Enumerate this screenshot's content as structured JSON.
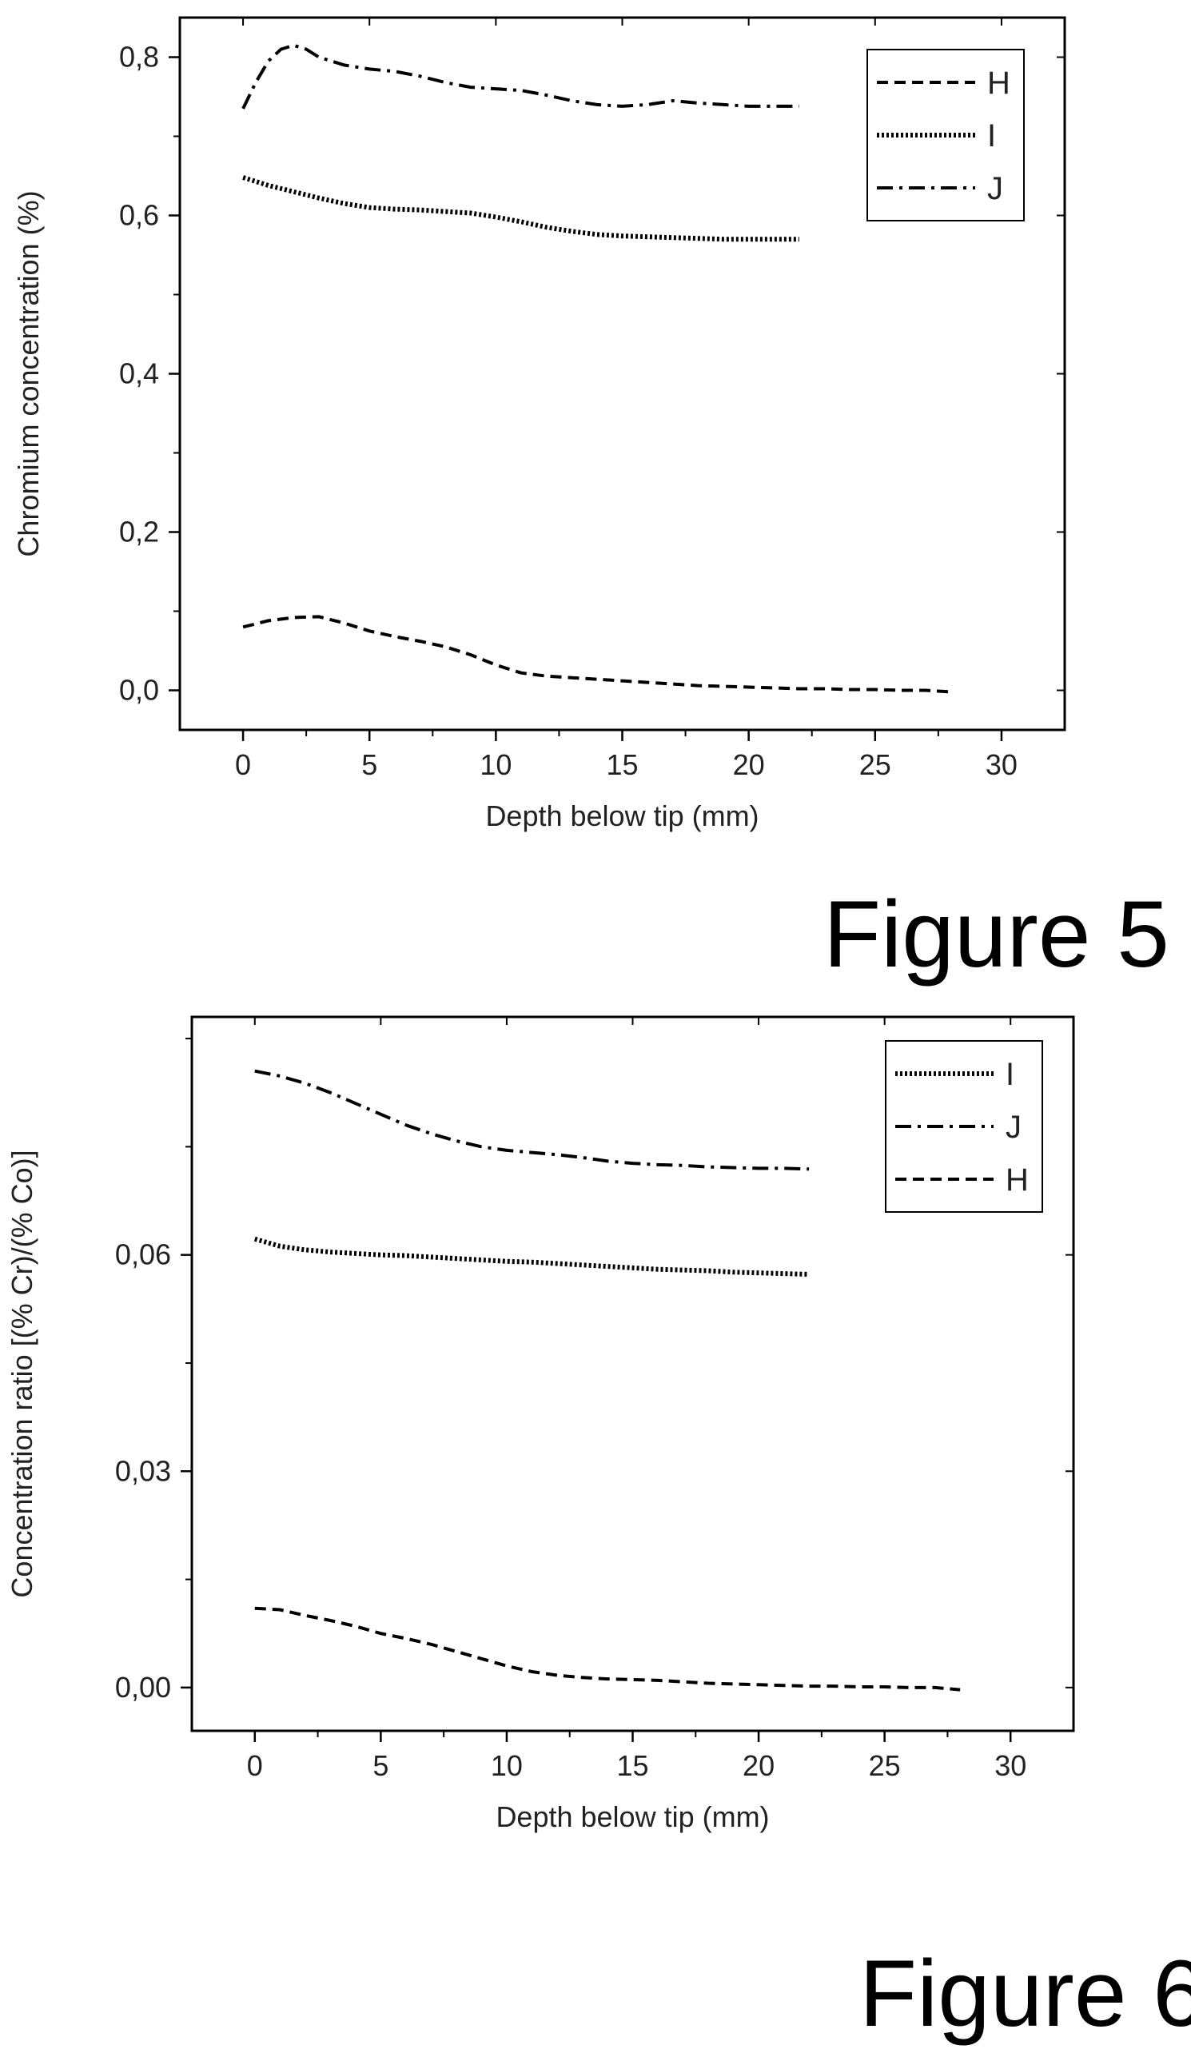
{
  "figures": [
    {
      "caption": "Figure 5"
    },
    {
      "caption": "Figure 6"
    }
  ],
  "chart_data": [
    {
      "type": "line",
      "title": "",
      "xlabel": "Depth below tip (mm)",
      "ylabel": "Chromium concentration (%)",
      "xlim": [
        -2.5,
        32.5
      ],
      "ylim": [
        -0.05,
        0.85
      ],
      "xticks": [
        0,
        5,
        10,
        15,
        20,
        25,
        30
      ],
      "xtick_labels": [
        "0",
        "5",
        "10",
        "15",
        "20",
        "25",
        "30"
      ],
      "yticks": [
        0.0,
        0.2,
        0.4,
        0.6,
        0.8
      ],
      "ytick_labels": [
        "0,0",
        "0,2",
        "0,4",
        "0,6",
        "0,8"
      ],
      "grid": false,
      "legend_position": "top-right",
      "series": [
        {
          "name": "H",
          "style": "dashed",
          "color": "#000000",
          "x": [
            0,
            1,
            2,
            3,
            4,
            5,
            6,
            7,
            8,
            9,
            10,
            11,
            12,
            13,
            14,
            15,
            16,
            17,
            18,
            19,
            20,
            21,
            22,
            23,
            24,
            25,
            26,
            27,
            28
          ],
          "y": [
            0.08,
            0.088,
            0.092,
            0.093,
            0.085,
            0.075,
            0.068,
            0.062,
            0.055,
            0.045,
            0.032,
            0.022,
            0.018,
            0.016,
            0.014,
            0.012,
            0.01,
            0.008,
            0.006,
            0.005,
            0.004,
            0.003,
            0.002,
            0.002,
            0.001,
            0.001,
            0.0,
            0.0,
            -0.002
          ]
        },
        {
          "name": "I",
          "style": "dotted",
          "color": "#000000",
          "x": [
            0,
            1,
            2,
            3,
            4,
            5,
            6,
            7,
            8,
            9,
            10,
            11,
            12,
            13,
            14,
            15,
            16,
            17,
            18,
            19,
            20,
            21,
            22
          ],
          "y": [
            0.648,
            0.638,
            0.63,
            0.622,
            0.615,
            0.61,
            0.608,
            0.607,
            0.605,
            0.603,
            0.598,
            0.592,
            0.585,
            0.58,
            0.576,
            0.574,
            0.573,
            0.572,
            0.571,
            0.57,
            0.57,
            0.57,
            0.57
          ]
        },
        {
          "name": "J",
          "style": "dashdot",
          "color": "#000000",
          "x": [
            0,
            0.5,
            1,
            1.5,
            2,
            2.5,
            3,
            4,
            5,
            6,
            7,
            8,
            9,
            10,
            11,
            12,
            13,
            14,
            15,
            16,
            17,
            18,
            19,
            20,
            21,
            22
          ],
          "y": [
            0.735,
            0.768,
            0.795,
            0.81,
            0.815,
            0.81,
            0.8,
            0.79,
            0.785,
            0.782,
            0.776,
            0.768,
            0.762,
            0.76,
            0.758,
            0.752,
            0.745,
            0.74,
            0.738,
            0.74,
            0.745,
            0.742,
            0.74,
            0.738,
            0.738,
            0.738
          ]
        }
      ]
    },
    {
      "type": "line",
      "title": "",
      "xlabel": "Depth below tip (mm)",
      "ylabel": "Concentration ratio [(% Cr)/(% Co)]",
      "xlim": [
        -2.5,
        32.5
      ],
      "ylim": [
        -0.006,
        0.093
      ],
      "xticks": [
        0,
        5,
        10,
        15,
        20,
        25,
        30
      ],
      "xtick_labels": [
        "0",
        "5",
        "10",
        "15",
        "20",
        "25",
        "30"
      ],
      "yticks": [
        0.0,
        0.03,
        0.06
      ],
      "ytick_labels": [
        "0,00",
        "0,03",
        "0,06"
      ],
      "grid": false,
      "legend_position": "top-right",
      "series": [
        {
          "name": "I",
          "style": "dotted",
          "color": "#000000",
          "x": [
            0,
            1,
            2,
            3,
            4,
            5,
            6,
            7,
            8,
            9,
            10,
            11,
            12,
            13,
            14,
            15,
            16,
            17,
            18,
            19,
            20,
            21,
            22
          ],
          "y": [
            0.0622,
            0.0612,
            0.0607,
            0.0604,
            0.0602,
            0.06,
            0.0599,
            0.0597,
            0.0595,
            0.0593,
            0.0591,
            0.059,
            0.0588,
            0.0586,
            0.0584,
            0.0582,
            0.058,
            0.0579,
            0.0578,
            0.0576,
            0.0575,
            0.0574,
            0.0573
          ]
        },
        {
          "name": "J",
          "style": "dashdot",
          "color": "#000000",
          "x": [
            0,
            1,
            2,
            3,
            4,
            5,
            6,
            7,
            8,
            9,
            10,
            11,
            12,
            13,
            14,
            15,
            16,
            17,
            18,
            19,
            20,
            21,
            22
          ],
          "y": [
            0.0855,
            0.0848,
            0.0838,
            0.0825,
            0.081,
            0.0795,
            0.078,
            0.0768,
            0.0758,
            0.075,
            0.0745,
            0.0742,
            0.0739,
            0.0735,
            0.073,
            0.0727,
            0.0725,
            0.0724,
            0.0722,
            0.0721,
            0.072,
            0.072,
            0.0719
          ]
        },
        {
          "name": "H",
          "style": "dashed",
          "color": "#000000",
          "x": [
            0,
            1,
            2,
            3,
            4,
            5,
            6,
            7,
            8,
            9,
            10,
            11,
            12,
            13,
            14,
            15,
            16,
            17,
            18,
            19,
            20,
            21,
            22,
            23,
            24,
            25,
            26,
            27,
            28
          ],
          "y": [
            0.011,
            0.0108,
            0.01,
            0.0093,
            0.0085,
            0.0075,
            0.0068,
            0.006,
            0.005,
            0.004,
            0.003,
            0.0022,
            0.0017,
            0.0014,
            0.0012,
            0.0011,
            0.001,
            0.0008,
            0.0006,
            0.0005,
            0.0004,
            0.0003,
            0.0002,
            0.0002,
            0.0001,
            0.0001,
            0.0,
            0.0,
            -0.0003
          ]
        }
      ]
    }
  ]
}
